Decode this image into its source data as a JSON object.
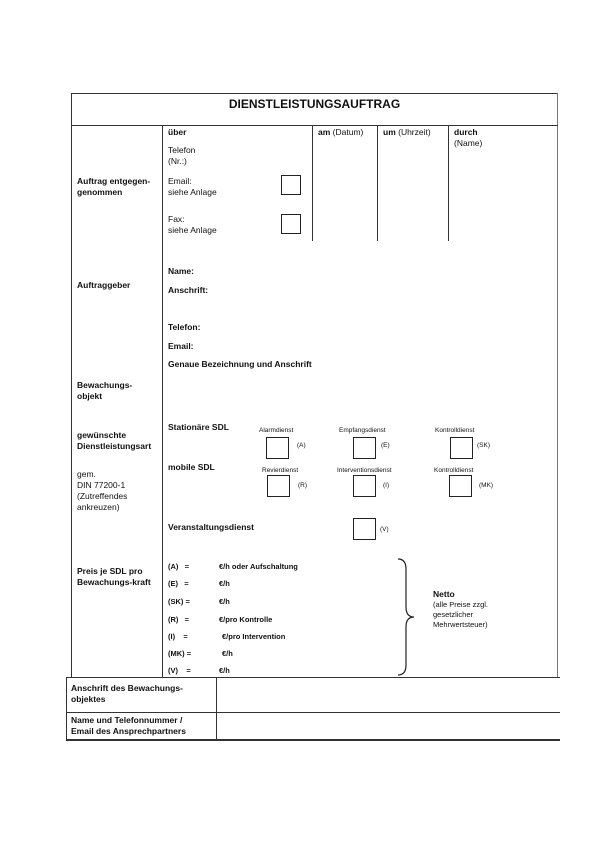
{
  "title": "DIENSTLEISTUNGSAUFTRAG",
  "auftrag_entgegengenommen": {
    "label": "Auftrag entgegen-\ngenommen",
    "ueber": "über",
    "telefon": "Telefon\n(Nr.:)",
    "email": "Email:\nsiehe Anlage",
    "fax": "Fax:\nsiehe Anlage",
    "am_bold": "am",
    "am_rest": " (Datum)",
    "um_bold": "um",
    "um_rest": " (Uhrzeit)",
    "durch": "durch",
    "durch_name": "(Name)"
  },
  "auftraggeber": {
    "label": "Auftraggeber",
    "name": "Name:",
    "anschrift": "Anschrift:",
    "telefon": "Telefon:",
    "email": "Email:",
    "genaue": "Genaue Bezeichnung und Anschrift"
  },
  "bewachungsobjekt": {
    "label": "Bewachungs-\nobjekt"
  },
  "dienstleistungsart": {
    "label": "gewünschte\nDienstleistungsart",
    "norm": "gem.\nDIN 77200-1\n(Zutreffendes\nankreuzen)",
    "stationaer": "Stationäre SDL",
    "mobile": "mobile SDL",
    "veranstaltung": "Veranstaltungsdienst",
    "options": [
      {
        "name": "Alarmdienst",
        "code": "(A)",
        "checked": false
      },
      {
        "name": "Empfangsdienst",
        "code": "(E)",
        "checked": false
      },
      {
        "name": "Kontrolldienst",
        "code": "(SK)",
        "checked": false
      },
      {
        "name": "Revierdienst",
        "code": "(R)",
        "checked": false
      },
      {
        "name": "Interventionsdienst",
        "code": "(I)",
        "checked": false
      },
      {
        "name": "Kontrolldienst",
        "code": "(MK)",
        "checked": false
      },
      {
        "name": "",
        "code": "(V)",
        "checked": false
      }
    ]
  },
  "preis": {
    "label": "Preis je SDL pro\nBewachungs-kraft",
    "rows": [
      {
        "code": "(A)   =",
        "unit": "€/h oder Aufschaltung"
      },
      {
        "code": "(E)   =",
        "unit": "€/h"
      },
      {
        "code": "(SK) =",
        "unit": "€/h"
      },
      {
        "code": "(R)   =",
        "unit": "€/pro Kontrolle"
      },
      {
        "code": "(I)    =",
        "unit": "€/pro Intervention"
      },
      {
        "code": "(MK) =",
        "unit": "€/h"
      },
      {
        "code": "(V)    =",
        "unit": "€/h"
      }
    ],
    "netto": "Netto",
    "netto_note": "(alle Preise zzgl.\ngesetzlicher\nMehrwertsteuer)"
  },
  "bottom": {
    "anschrift_label": "Anschrift des Bewachungs-\nobjektes",
    "anschrift_value": "",
    "ansprech_label": "Name und Telefonnummer /\nEmail des Ansprechpartners",
    "ansprech_value": ""
  }
}
